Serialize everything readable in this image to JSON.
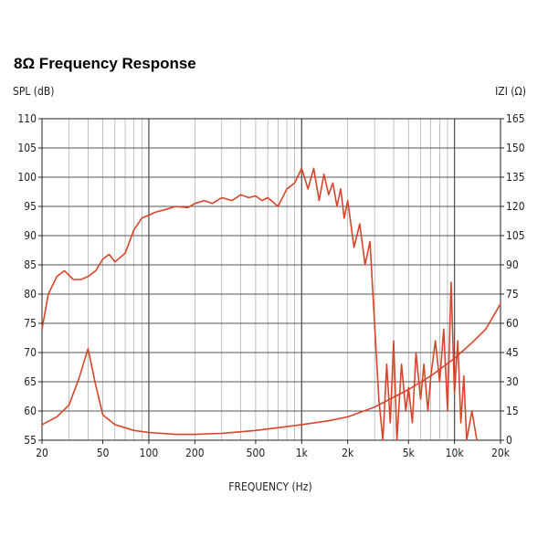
{
  "title": "8Ω Frequency Response",
  "chart_data": {
    "type": "line",
    "title": "8Ω Frequency Response",
    "xlabel": "FREQUENCY (Hz)",
    "ylabel_left": "SPL (dB)",
    "ylabel_right": "IZI (Ω)",
    "x_scale": "log",
    "xlim": [
      20,
      20000
    ],
    "ylim_left": [
      55,
      110
    ],
    "ylim_right": [
      0,
      165
    ],
    "grid": true,
    "line_color": "#d9442a",
    "grid_color": "#9a9a9a",
    "x_ticks": [
      20,
      50,
      100,
      200,
      500,
      1000,
      2000,
      5000,
      10000,
      20000
    ],
    "x_tick_labels": [
      "20",
      "50",
      "100",
      "200",
      "500",
      "1k",
      "2k",
      "5k",
      "10k",
      "20k"
    ],
    "y_ticks_left": [
      "55",
      "60",
      "65",
      "70",
      "75",
      "80",
      "85",
      "90",
      "95",
      "100",
      "105",
      "110"
    ],
    "y_ticks_right": [
      "0",
      "15",
      "30",
      "45",
      "60",
      "75",
      "90",
      "105",
      "120",
      "135",
      "150",
      "165"
    ],
    "series": [
      {
        "axis": "left",
        "x": [
          20,
          22,
          25,
          28,
          32,
          36,
          40,
          45,
          50,
          55,
          60,
          70,
          80,
          90,
          100,
          110,
          130,
          150,
          180,
          200,
          230,
          260,
          300,
          350,
          400,
          450,
          500,
          550,
          600,
          700,
          800,
          900,
          1000,
          1100,
          1200,
          1300,
          1400,
          1500,
          1600,
          1700,
          1800,
          1900,
          2000,
          2200,
          2400,
          2600,
          2800,
          3000,
          3200,
          3400,
          3600,
          3800,
          4000,
          4200,
          4500,
          4800,
          5000,
          5300,
          5600,
          6000,
          6300,
          6700,
          7000,
          7500,
          8000,
          8500,
          9000,
          9500,
          10000,
          10500,
          11000,
          11500,
          12000,
          13000,
          14000
        ],
        "y": [
          74,
          80,
          83,
          84,
          82.5,
          82.5,
          83,
          84,
          86,
          86.8,
          85.5,
          87,
          91,
          93,
          93.5,
          94,
          94.5,
          95,
          94.8,
          95.5,
          96,
          95.5,
          96.5,
          96,
          97,
          96.5,
          96.8,
          96,
          96.5,
          95,
          98,
          99,
          101.5,
          98,
          101.5,
          96,
          100.5,
          97,
          99,
          95,
          98,
          93,
          96,
          88,
          92,
          85,
          89,
          75,
          62,
          52,
          68,
          58,
          72,
          55,
          68,
          60,
          64,
          58,
          70,
          62,
          68,
          60,
          66,
          72,
          65,
          74,
          60,
          82,
          63,
          72,
          58,
          66,
          55,
          60,
          55
        ]
      },
      {
        "axis": "right",
        "x": [
          20,
          25,
          30,
          35,
          40,
          45,
          50,
          60,
          80,
          100,
          150,
          200,
          300,
          500,
          800,
          1000,
          1500,
          2000,
          3000,
          5000,
          7000,
          10000,
          13000,
          16000,
          20000
        ],
        "y": [
          8,
          12,
          18,
          32,
          47,
          28,
          13,
          8,
          5,
          4,
          3,
          3,
          3.5,
          5,
          7,
          8,
          10,
          12,
          17,
          26,
          33,
          42,
          50,
          57,
          70
        ]
      }
    ]
  }
}
